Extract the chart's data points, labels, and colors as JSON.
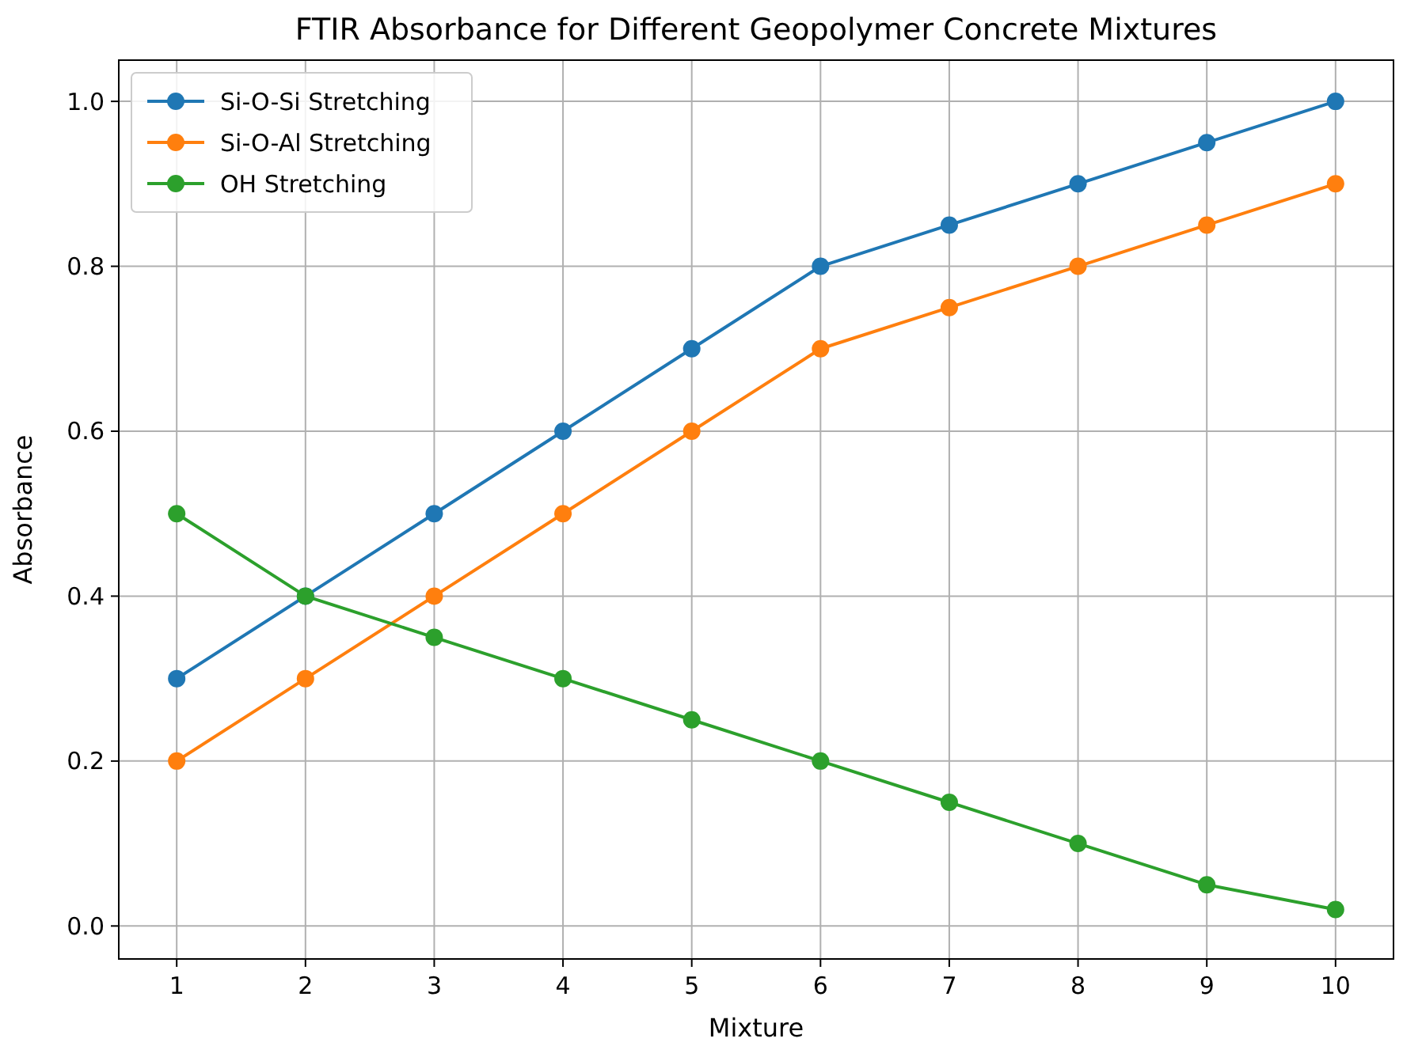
{
  "chart_data": {
    "type": "line",
    "title": "FTIR Absorbance for Different Geopolymer Concrete Mixtures",
    "xlabel": "Mixture",
    "ylabel": "Absorbance",
    "x": [
      1,
      2,
      3,
      4,
      5,
      6,
      7,
      8,
      9,
      10
    ],
    "series": [
      {
        "name": "Si-O-Si Stretching",
        "color": "#1f77b4",
        "values": [
          0.3,
          0.4,
          0.5,
          0.6,
          0.7,
          0.8,
          0.85,
          0.9,
          0.95,
          1.0
        ]
      },
      {
        "name": "Si-O-Al Stretching",
        "color": "#ff7f0e",
        "values": [
          0.2,
          0.3,
          0.4,
          0.5,
          0.6,
          0.7,
          0.75,
          0.8,
          0.85,
          0.9
        ]
      },
      {
        "name": "OH Stretching",
        "color": "#2ca02c",
        "values": [
          0.5,
          0.4,
          0.35,
          0.3,
          0.25,
          0.2,
          0.15,
          0.1,
          0.05,
          0.02
        ]
      }
    ],
    "xlim": [
      0.55,
      10.45
    ],
    "xticks": [
      1,
      2,
      3,
      4,
      5,
      6,
      7,
      8,
      9,
      10
    ],
    "ylim": [
      -0.04,
      1.05
    ],
    "yticks": [
      {
        "value": 0,
        "label": "0.0"
      },
      {
        "value": 0.2,
        "label": "0.2"
      },
      {
        "value": 0.4,
        "label": "0.4"
      },
      {
        "value": 0.6,
        "label": "0.6"
      },
      {
        "value": 0.8,
        "label": "0.8"
      },
      {
        "value": 1.0,
        "label": "1.0"
      }
    ],
    "grid": true,
    "legend": "top left",
    "marker": "circle",
    "line_style": "solid"
  }
}
